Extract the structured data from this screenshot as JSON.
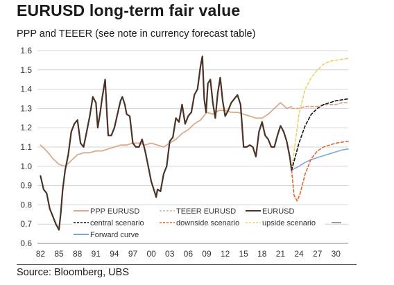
{
  "title": "EURUSD long-term fair value",
  "subtitle": "PPP and TEEER (see note in currency forecast table)",
  "source": "Source: Bloomberg, UBS",
  "chart_data": {
    "type": "line",
    "x_ticks": [
      "82",
      "85",
      "88",
      "91",
      "94",
      "97",
      "00",
      "03",
      "06",
      "09",
      "12",
      "15",
      "18",
      "21",
      "24",
      "27",
      "30"
    ],
    "y_ticks": [
      "0.6",
      "0.7",
      "0.8",
      "0.9",
      "1.0",
      "1.1",
      "1.2",
      "1.3",
      "1.4",
      "1.5",
      "1.6"
    ],
    "xlim": [
      1981.5,
      2032
    ],
    "ylim": [
      0.6,
      1.6
    ],
    "grid": true,
    "legend_position": "bottom",
    "legend": [
      {
        "label": "PPP EURUSD",
        "series": 0,
        "style": "solid"
      },
      {
        "label": "TEEER EURUSD",
        "series": 1,
        "style": "dashed"
      },
      {
        "label": "EURUSD",
        "series": 2,
        "style": "solid"
      },
      {
        "label": "central scenario",
        "series": 3,
        "style": "dashed"
      },
      {
        "label": "downside scenario",
        "series": 4,
        "style": "dashed"
      },
      {
        "label": "upside scenario",
        "series": 5,
        "style": "dashed"
      },
      {
        "label": "Forward curve",
        "series": 6,
        "style": "solid"
      }
    ],
    "series": [
      {
        "name": "PPP EURUSD",
        "color": "#d9a98a",
        "x": [
          1982.0,
          1983.0,
          1984.0,
          1985.0,
          1986.0,
          1987.0,
          1988.0,
          1989.0,
          1990.0,
          1991.0,
          1992.0,
          1993.0,
          1994.0,
          1995.0,
          1996.0,
          1997.0,
          1998.0,
          1999.0,
          2000.0,
          2001.0,
          2002.0,
          2003.0,
          2004.0,
          2005.0,
          2006.0,
          2007.0,
          2008.0,
          2009.0,
          2010.0,
          2011.0,
          2012.0,
          2013.0,
          2014.0,
          2015.0,
          2016.0,
          2017.0,
          2018.0,
          2019.0,
          2020.0,
          2021.0,
          2022.0,
          2022.8
        ],
        "y": [
          1.11,
          1.08,
          1.04,
          1.01,
          1.0,
          1.03,
          1.06,
          1.07,
          1.07,
          1.08,
          1.08,
          1.09,
          1.1,
          1.11,
          1.11,
          1.12,
          1.12,
          1.11,
          1.12,
          1.11,
          1.1,
          1.12,
          1.14,
          1.17,
          1.19,
          1.22,
          1.24,
          1.28,
          1.27,
          1.29,
          1.29,
          1.28,
          1.28,
          1.27,
          1.26,
          1.25,
          1.25,
          1.27,
          1.3,
          1.33,
          1.3,
          1.31
        ]
      },
      {
        "name": "TEEER EURUSD",
        "color": "#d9a98a",
        "x": [
          2022.8,
          2024.0,
          2025.0,
          2026.0,
          2027.0,
          2028.0,
          2029.0,
          2030.0,
          2031.0,
          2032.0
        ],
        "y": [
          1.3,
          1.3,
          1.31,
          1.31,
          1.31,
          1.32,
          1.32,
          1.32,
          1.33,
          1.33
        ]
      },
      {
        "name": "EURUSD",
        "color": "#4a3226",
        "x": [
          1982.0,
          1982.5,
          1983.0,
          1983.5,
          1984.0,
          1984.5,
          1985.0,
          1985.3,
          1985.6,
          1986.0,
          1986.5,
          1987.0,
          1987.5,
          1988.0,
          1988.5,
          1989.0,
          1989.5,
          1990.0,
          1990.5,
          1991.0,
          1991.3,
          1991.7,
          1992.0,
          1992.5,
          1992.8,
          1993.0,
          1993.5,
          1994.0,
          1994.5,
          1995.0,
          1995.3,
          1995.7,
          1996.0,
          1996.5,
          1997.0,
          1997.5,
          1998.0,
          1998.5,
          1999.0,
          1999.5,
          2000.0,
          2000.5,
          2000.8,
          2001.0,
          2001.5,
          2002.0,
          2002.5,
          2003.0,
          2003.5,
          2004.0,
          2004.5,
          2005.0,
          2005.5,
          2006.0,
          2006.5,
          2007.0,
          2007.5,
          2008.0,
          2008.3,
          2008.6,
          2008.9,
          2009.2,
          2009.6,
          2010.0,
          2010.4,
          2010.8,
          2011.2,
          2011.6,
          2012.0,
          2012.5,
          2013.0,
          2013.5,
          2014.0,
          2014.5,
          2015.0,
          2015.5,
          2016.0,
          2016.5,
          2017.0,
          2017.5,
          2018.0,
          2018.5,
          2019.0,
          2019.5,
          2020.0,
          2020.5,
          2021.0,
          2021.5,
          2022.0,
          2022.5,
          2022.8
        ],
        "y": [
          0.95,
          0.88,
          0.86,
          0.78,
          0.74,
          0.7,
          0.67,
          0.76,
          0.88,
          0.98,
          1.06,
          1.18,
          1.22,
          1.24,
          1.12,
          1.1,
          1.18,
          1.26,
          1.36,
          1.33,
          1.2,
          1.28,
          1.35,
          1.45,
          1.27,
          1.16,
          1.16,
          1.2,
          1.27,
          1.34,
          1.36,
          1.32,
          1.27,
          1.26,
          1.12,
          1.1,
          1.1,
          1.14,
          1.08,
          1.0,
          0.92,
          0.87,
          0.84,
          0.88,
          0.87,
          0.96,
          1.0,
          1.13,
          1.15,
          1.25,
          1.23,
          1.32,
          1.22,
          1.26,
          1.28,
          1.37,
          1.4,
          1.52,
          1.57,
          1.35,
          1.28,
          1.43,
          1.45,
          1.33,
          1.25,
          1.38,
          1.46,
          1.34,
          1.26,
          1.29,
          1.33,
          1.35,
          1.37,
          1.32,
          1.1,
          1.1,
          1.11,
          1.1,
          1.05,
          1.18,
          1.23,
          1.16,
          1.14,
          1.1,
          1.1,
          1.16,
          1.21,
          1.18,
          1.13,
          1.05,
          0.98
        ]
      },
      {
        "name": "central scenario",
        "color": "#111111",
        "x": [
          2022.8,
          2024.0,
          2025.0,
          2026.0,
          2027.0,
          2028.0,
          2029.0,
          2030.0,
          2031.0,
          2032.0
        ],
        "y": [
          0.98,
          1.12,
          1.21,
          1.27,
          1.3,
          1.32,
          1.33,
          1.34,
          1.345,
          1.35
        ]
      },
      {
        "name": "downside scenario",
        "color": "#e4662e",
        "x": [
          2022.8,
          2023.2,
          2023.7,
          2024.2,
          2025.0,
          2026.0,
          2027.0,
          2028.0,
          2029.0,
          2030.0,
          2031.0,
          2032.0
        ],
        "y": [
          0.98,
          0.85,
          0.82,
          0.86,
          0.96,
          1.04,
          1.08,
          1.1,
          1.11,
          1.12,
          1.125,
          1.13
        ]
      },
      {
        "name": "upside scenario",
        "color": "#e9d36a",
        "x": [
          2022.8,
          2024.0,
          2025.0,
          2026.0,
          2027.0,
          2028.0,
          2029.0,
          2030.0,
          2031.0,
          2032.0
        ],
        "y": [
          0.98,
          1.27,
          1.4,
          1.46,
          1.5,
          1.53,
          1.545,
          1.55,
          1.555,
          1.56
        ]
      },
      {
        "name": "Forward curve",
        "color": "#7ea6d6",
        "x": [
          2022.8,
          2024.0,
          2025.0,
          2026.0,
          2027.0,
          2028.0,
          2029.0,
          2030.0,
          2031.0,
          2032.0
        ],
        "y": [
          0.98,
          1.0,
          1.02,
          1.035,
          1.045,
          1.055,
          1.065,
          1.075,
          1.085,
          1.09
        ]
      }
    ]
  }
}
